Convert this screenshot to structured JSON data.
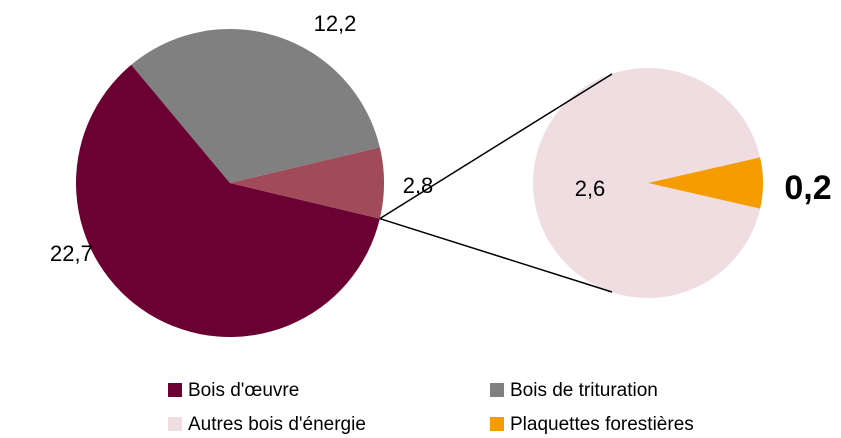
{
  "chart_data": {
    "type": "pie",
    "main": {
      "categories": [
        "Bois d'œuvre",
        "Bois de trituration",
        null
      ],
      "values": [
        22.7,
        12.2,
        2.8
      ],
      "value_labels": [
        "22,7",
        "12,2",
        "2,8"
      ],
      "colors": [
        "#6b0032",
        "#808080",
        "#a04a5a"
      ]
    },
    "secondary": {
      "categories": [
        "Autres bois d'énergie",
        "Plaquettes forestières"
      ],
      "values": [
        2.6,
        0.2
      ],
      "value_labels": [
        "2,6",
        "0,2"
      ],
      "colors": [
        "#f0dde2",
        "#f59c00"
      ]
    },
    "legend": "bottom"
  }
}
